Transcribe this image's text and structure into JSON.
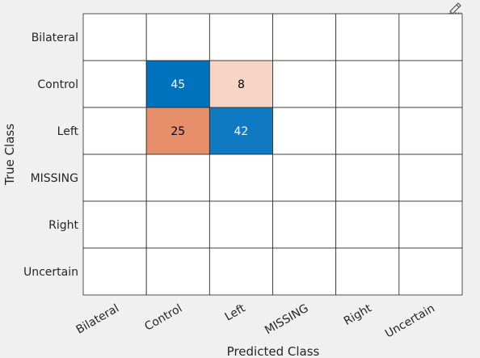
{
  "toolbar": {
    "icon": "brush-edit-icon"
  },
  "chart_data": {
    "type": "heatmap",
    "subtype": "confusion-matrix",
    "xlabel": "Predicted Class",
    "ylabel": "True Class",
    "x_categories": [
      "Bilateral",
      "Control",
      "Left",
      "MISSING",
      "Right",
      "Uncertain"
    ],
    "y_categories": [
      "Bilateral",
      "Control",
      "Left",
      "MISSING",
      "Right",
      "Uncertain"
    ],
    "values": [
      [
        null,
        null,
        null,
        null,
        null,
        null
      ],
      [
        null,
        45,
        8,
        null,
        null,
        null
      ],
      [
        null,
        25,
        42,
        null,
        null,
        null
      ],
      [
        null,
        null,
        null,
        null,
        null,
        null
      ],
      [
        null,
        null,
        null,
        null,
        null,
        null
      ],
      [
        null,
        null,
        null,
        null,
        null,
        null
      ]
    ],
    "colors": {
      "diagonal": "#0072bd",
      "offdiagonal": "#d95319",
      "grid": "#262626",
      "background": "#ffffff"
    }
  }
}
